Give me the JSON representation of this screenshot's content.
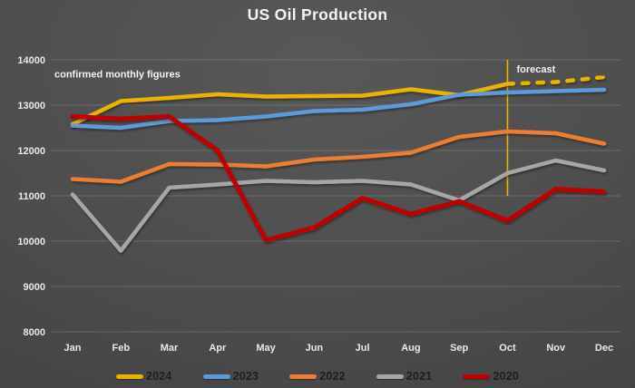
{
  "title": "US Oil Production",
  "chart_data": {
    "type": "line",
    "title": "US Oil Production",
    "categories": [
      "Jan",
      "Feb",
      "Mar",
      "Apr",
      "May",
      "Jun",
      "Jul",
      "Aug",
      "Sep",
      "Oct",
      "Nov",
      "Dec"
    ],
    "ylim": [
      8000,
      14000
    ],
    "yticks": [
      8000,
      9000,
      10000,
      11000,
      12000,
      13000,
      14000
    ],
    "grid": true,
    "legend_position": "bottom",
    "series": [
      {
        "name": "2024",
        "color": "#E8B400",
        "dash_from_index": 9,
        "values": [
          12580,
          13090,
          13160,
          13240,
          13190,
          13200,
          13210,
          13350,
          13220,
          13470,
          13510,
          13620
        ]
      },
      {
        "name": "2023",
        "color": "#5B9BD5",
        "values": [
          12550,
          12500,
          12650,
          12670,
          12750,
          12870,
          12900,
          13020,
          13230,
          13280,
          13310,
          13340
        ]
      },
      {
        "name": "2022",
        "color": "#ED7D31",
        "values": [
          11370,
          11310,
          11700,
          11690,
          11650,
          11800,
          11860,
          11950,
          12300,
          12420,
          12380,
          12150
        ]
      },
      {
        "name": "2021",
        "color": "#A6A6A6",
        "values": [
          11030,
          9790,
          11180,
          11250,
          11330,
          11300,
          11330,
          11250,
          10900,
          11500,
          11780,
          11560
        ]
      },
      {
        "name": "2020",
        "color": "#C00000",
        "values": [
          12750,
          12700,
          12750,
          12000,
          10020,
          10300,
          10950,
          10600,
          10880,
          10450,
          11150,
          11090
        ]
      }
    ],
    "annotations": [
      {
        "id": "confirmed",
        "text": "confirmed monthly figures",
        "month": "Jan",
        "value": 13610,
        "dx": -20
      },
      {
        "id": "forecast",
        "text": "forecast",
        "month": "Oct",
        "value": 13720,
        "dx": 10
      }
    ],
    "forecast_divider": {
      "month": "Oct",
      "value_from": 14000,
      "value_to": 11000,
      "color": "#E8B400"
    }
  },
  "colors": {
    "background_center": "#595858",
    "background_edge": "#3a3939",
    "grid": "#9a9a9a",
    "axis_text": "#e9e9e9",
    "annotation_text": "#f3f3f3",
    "legend_text": "#1e1e1e"
  }
}
